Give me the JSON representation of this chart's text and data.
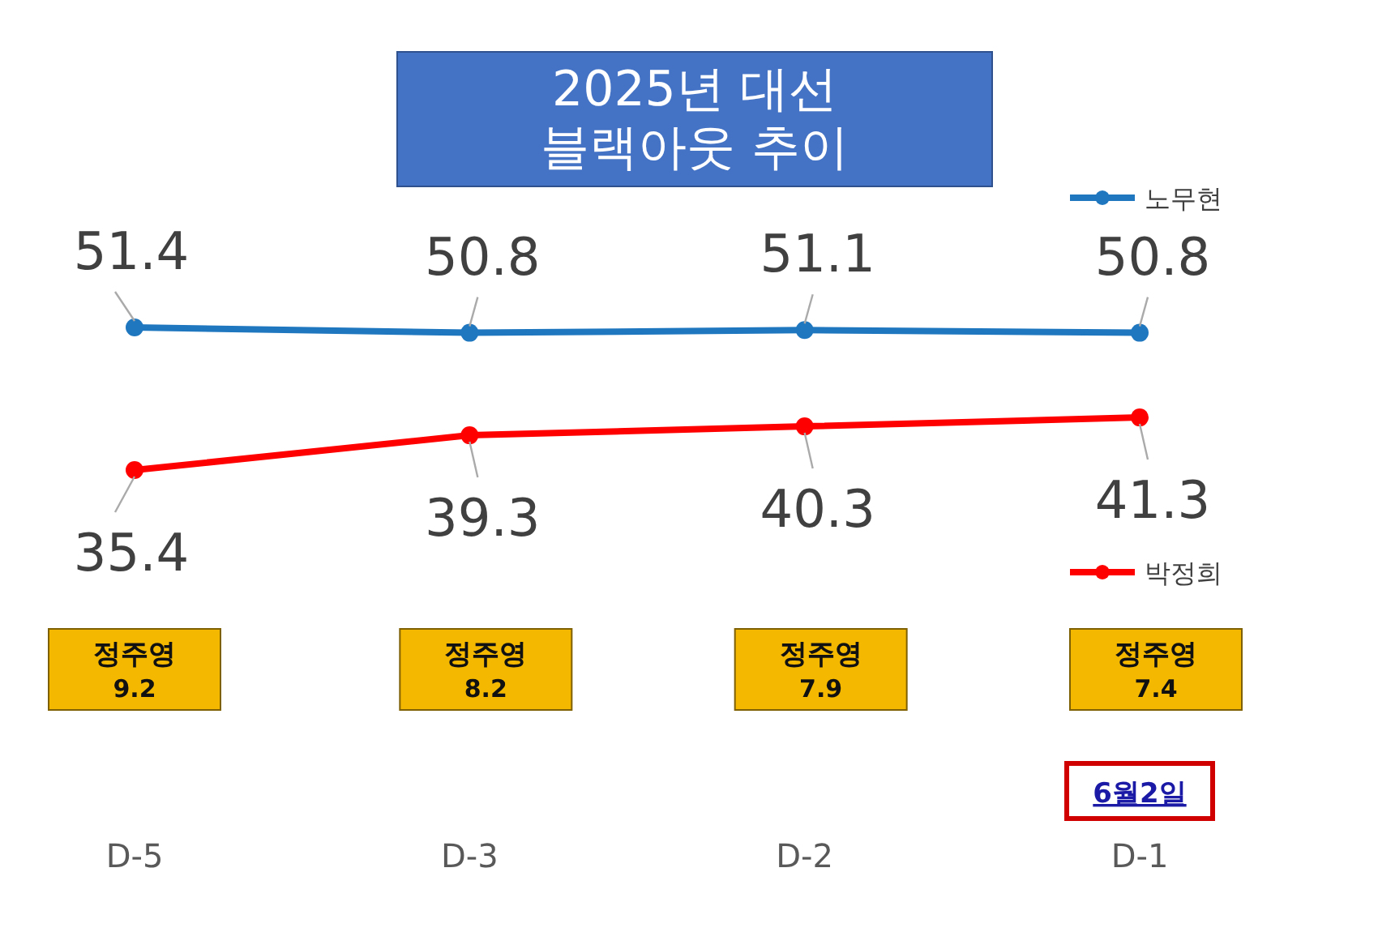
{
  "chart_data": {
    "type": "line",
    "title": "2025년 대선 블랙아웃 추이",
    "categories": [
      "D-5",
      "D-3",
      "D-2",
      "D-1"
    ],
    "series": [
      {
        "name": "노무현",
        "color": "#1f77c0",
        "values": [
          51.4,
          50.8,
          51.1,
          50.8
        ]
      },
      {
        "name": "박정희",
        "color": "#ff0000",
        "values": [
          35.4,
          39.3,
          40.3,
          41.3
        ]
      }
    ],
    "data_labels": true,
    "marker": "circle",
    "line_style": "solid",
    "legend": "right",
    "annotations": [
      "정주영 9.2",
      "정주영 8.2",
      "정주영 7.9",
      "정주영 7.4",
      "6월2일"
    ]
  }
}
